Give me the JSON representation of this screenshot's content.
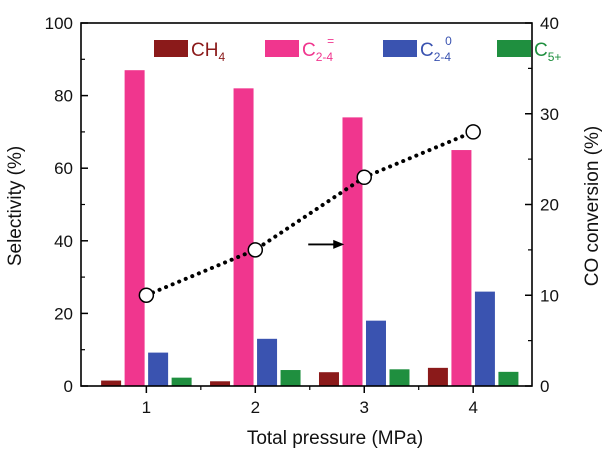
{
  "chart_data": {
    "type": "bar",
    "categories": [
      "1",
      "2",
      "3",
      "4"
    ],
    "series": [
      {
        "name": "CH",
        "sub": "4",
        "sup": "",
        "axis": "left",
        "color": "#8b1a1a",
        "values": [
          1.5,
          1.3,
          3.8,
          5.0
        ]
      },
      {
        "name": "C",
        "sub": "2-4",
        "sup": "=",
        "axis": "left",
        "color": "#f0368e",
        "values": [
          87,
          82,
          74,
          65
        ]
      },
      {
        "name": "C",
        "sub": "2-4",
        "sup": "0",
        "axis": "left",
        "color": "#3a53b0",
        "values": [
          9.2,
          13,
          18,
          26
        ]
      },
      {
        "name": "C",
        "sub": "5+",
        "sup": "",
        "axis": "left",
        "color": "#1f8f3f",
        "values": [
          2.3,
          4.4,
          4.6,
          3.9
        ]
      }
    ],
    "line": {
      "axis": "right",
      "style": "dotted",
      "marker": "open-circle",
      "color": "#000000",
      "values": [
        10.0,
        15.0,
        23.0,
        28.0
      ]
    },
    "annotation": {
      "type": "arrow",
      "direction": "right"
    },
    "xlabel": "Total pressure (MPa)",
    "ylabel": "Selectivity (%)",
    "y2label": "CO conversion (%)",
    "ylim": [
      0,
      100
    ],
    "y2lim": [
      0,
      40
    ],
    "yticks": [
      0,
      20,
      40,
      60,
      80,
      100
    ],
    "y2ticks": [
      0,
      10,
      20,
      30,
      40
    ],
    "legend_position": "top"
  }
}
